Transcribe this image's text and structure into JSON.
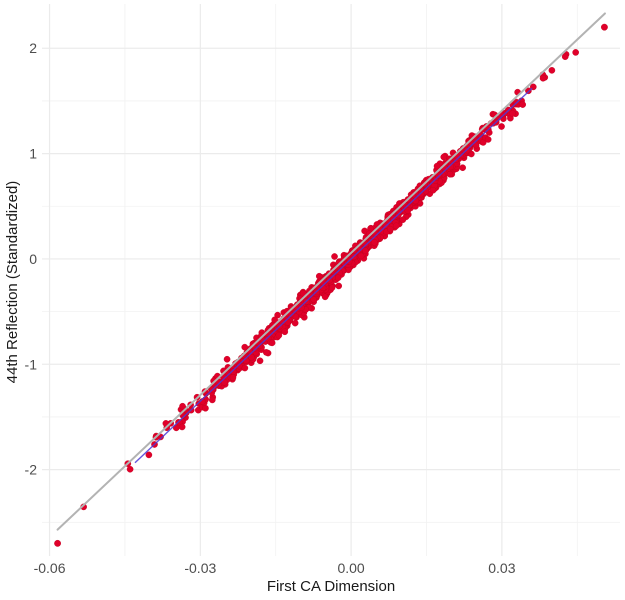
{
  "chart_data": {
    "type": "scatter",
    "title": "",
    "xlabel": "First CA Dimension",
    "ylabel": "44th Reflection (Standardized)",
    "xlim": [
      -0.0615,
      0.0535
    ],
    "ylim": [
      -2.82,
      2.42
    ],
    "x_ticks": [
      -0.06,
      -0.03,
      0.0,
      0.03
    ],
    "x_tick_labels": [
      "-0.06",
      "-0.03",
      "0.00",
      "0.03"
    ],
    "y_ticks": [
      -2,
      -1,
      0,
      1,
      2
    ],
    "y_tick_labels": [
      "-2",
      "-1",
      "0",
      "1",
      "2"
    ],
    "x_minor_ticks": [
      -0.045,
      -0.015,
      0.015,
      0.045
    ],
    "y_minor_ticks": [
      -2.5,
      -1.5,
      -0.5,
      0.5,
      1.5
    ],
    "grid": true,
    "legend": "none",
    "colors": {
      "points": "#e0002a",
      "points_edge": "#c0001e",
      "trend_inner": "#4b3bd6",
      "trend_outer": "#b3b3b3",
      "grid": "#ebebeb"
    },
    "trend_line": {
      "x": [
        -0.0584,
        0.0505
      ],
      "y": [
        -2.57,
        2.33
      ]
    },
    "outliers": [
      {
        "x": -0.0584,
        "y": -2.7
      },
      {
        "x": 0.0504,
        "y": 2.2
      }
    ],
    "point_cloud": {
      "x_range": [
        -0.054,
        0.046
      ],
      "slope": 45.0,
      "intercept": 0.0,
      "spread_sd": 0.045,
      "n": 1100
    }
  }
}
